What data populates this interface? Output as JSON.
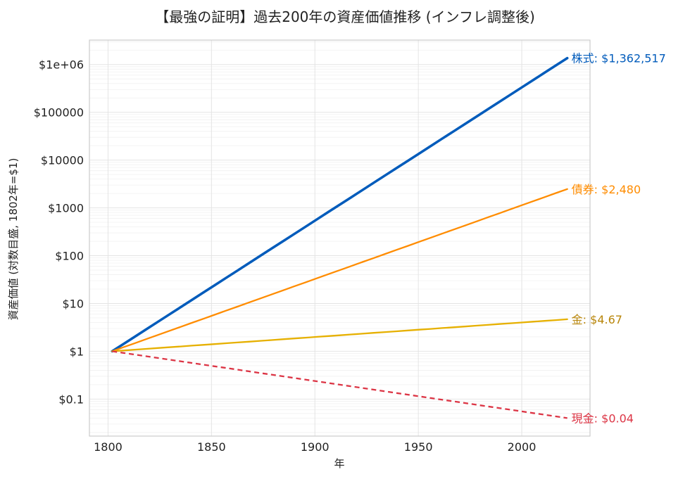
{
  "chart_data": {
    "type": "line",
    "title": "【最強の証明】過去200年の資産価値推移 (インフレ調整後)",
    "xlabel": "年",
    "ylabel": "資産価値 (対数目盛, 1802年=$1)",
    "yscale": "log",
    "xlim": [
      1791,
      2033
    ],
    "ylim_log10": [
      -1.775,
      6.511
    ],
    "x_ticks": [
      1800,
      1850,
      1900,
      1950,
      2000
    ],
    "x_tick_labels": [
      "1800",
      "1850",
      "1900",
      "1950",
      "2000"
    ],
    "y_ticks": [
      0.1,
      1,
      10,
      100,
      1000,
      10000,
      100000,
      1000000
    ],
    "y_tick_labels": [
      "$0.1",
      "$1",
      "$10",
      "$100",
      "$1000",
      "$10000",
      "$100000",
      "$1e+06"
    ],
    "grid": true,
    "minor_grid": true,
    "legend": "none",
    "series": [
      {
        "name": "株式",
        "x": [
          1802,
          2022
        ],
        "y": [
          1,
          1362517
        ],
        "color": "#005BBB",
        "label_color": "#005BBB",
        "style": "solid",
        "end_label": "株式: $1,362,517"
      },
      {
        "name": "債券",
        "x": [
          1802,
          2022
        ],
        "y": [
          1,
          2480
        ],
        "color": "#FF8C00",
        "label_color": "#FF8C00",
        "style": "solid",
        "end_label": "債券: $2,480"
      },
      {
        "name": "金",
        "x": [
          1802,
          2022
        ],
        "y": [
          1,
          4.67
        ],
        "color": "#E6B000",
        "label_color": "#B8860B",
        "style": "solid",
        "end_label": "金: $4.67"
      },
      {
        "name": "現金",
        "x": [
          1802,
          2022
        ],
        "y": [
          1,
          0.04
        ],
        "color": "#DC3545",
        "label_color": "#DC3545",
        "style": "dashed",
        "end_label": "現金: $0.04"
      }
    ]
  }
}
